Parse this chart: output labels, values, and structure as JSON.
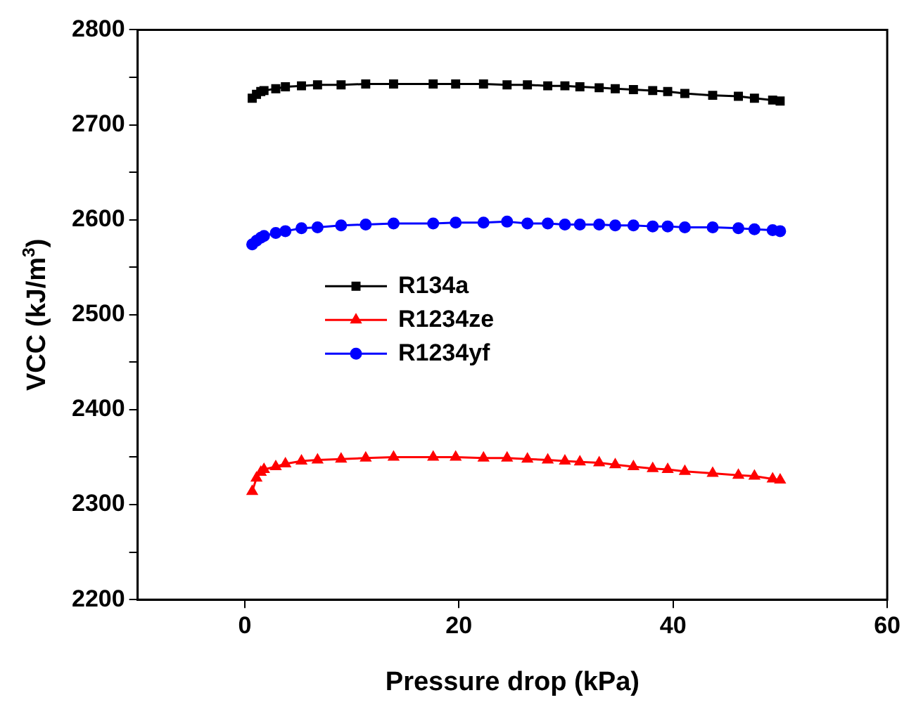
{
  "chart_data": {
    "type": "line",
    "xlabel": "Pressure drop (kPa)",
    "ylabel": "VCC (kJ/m$^{3}$)",
    "x": [
      0.7,
      1.1,
      1.5,
      1.8,
      2.9,
      3.8,
      5.3,
      6.8,
      9.0,
      11.3,
      13.9,
      17.6,
      19.7,
      22.3,
      24.5,
      26.4,
      28.3,
      29.9,
      31.3,
      33.1,
      34.6,
      36.3,
      38.1,
      39.5,
      41.1,
      43.7,
      46.1,
      47.6,
      49.3,
      50.0
    ],
    "series": [
      {
        "name": "R134a",
        "color": "#000000",
        "marker": "square",
        "values": [
          2728,
          2732,
          2735,
          2736,
          2738,
          2740,
          2741,
          2742,
          2742,
          2743,
          2743,
          2743,
          2743,
          2743,
          2742,
          2742,
          2741,
          2741,
          2740,
          2739,
          2738,
          2737,
          2736,
          2735,
          2733,
          2731,
          2730,
          2728,
          2726,
          2725
        ]
      },
      {
        "name": "R1234ze",
        "color": "#ff0000",
        "marker": "triangle",
        "values": [
          2314,
          2328,
          2334,
          2337,
          2340,
          2343,
          2346,
          2347,
          2348,
          2349,
          2350,
          2350,
          2350,
          2349,
          2349,
          2348,
          2347,
          2346,
          2345,
          2344,
          2342,
          2340,
          2338,
          2337,
          2335,
          2333,
          2331,
          2330,
          2327,
          2326
        ]
      },
      {
        "name": "R1234yf",
        "color": "#0000ff",
        "marker": "circle",
        "values": [
          2574,
          2578,
          2581,
          2583,
          2586,
          2588,
          2591,
          2592,
          2594,
          2595,
          2596,
          2596,
          2597,
          2597,
          2598,
          2596,
          2596,
          2595,
          2595,
          2595,
          2594,
          2594,
          2593,
          2593,
          2592,
          2592,
          2591,
          2590,
          2589,
          2588
        ]
      }
    ],
    "xlim": [
      -10,
      60
    ],
    "xticks": [
      0,
      20,
      40,
      60
    ],
    "ylim": [
      2200,
      2800
    ],
    "yticks": [
      2200,
      {
        "value": 2250,
        "label": null
      },
      2300,
      {
        "value": 2350,
        "label": null
      },
      2400,
      {
        "value": 2450,
        "label": null
      },
      2500,
      {
        "value": 2550,
        "label": null
      },
      2600,
      {
        "value": 2650,
        "label": null
      },
      2700,
      {
        "value": 2750,
        "label": null
      },
      2800
    ],
    "grid": false,
    "legend": "center left",
    "line_style": "solid"
  }
}
